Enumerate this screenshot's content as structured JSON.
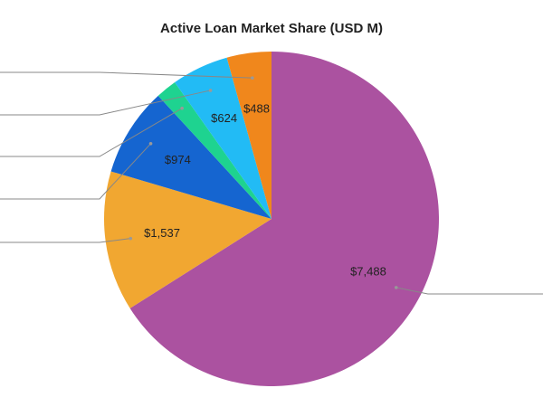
{
  "chart_data": {
    "type": "pie",
    "title": "Active Loan Market Share (USD M)",
    "categories": [
      null,
      null,
      null,
      null,
      null,
      null
    ],
    "values": [
      7488,
      1537,
      974,
      230,
      624,
      488
    ],
    "value_labels": [
      "$7,488",
      "$1,537",
      "$974",
      null,
      "$624",
      "$488"
    ],
    "colors": [
      "#ab52a0",
      "#f1a731",
      "#1565d0",
      "#1ed390",
      "#22bbf5",
      "#f0871c"
    ]
  }
}
